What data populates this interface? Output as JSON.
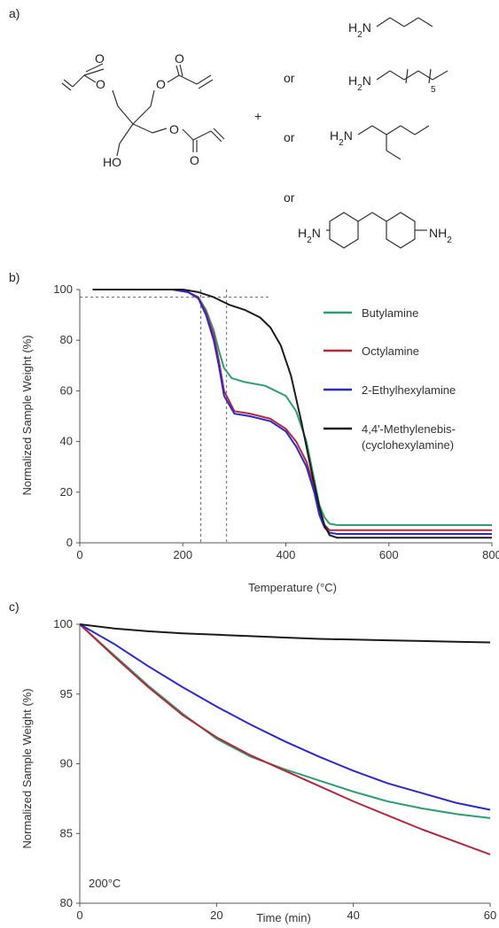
{
  "panels": {
    "a": "a)",
    "b": "b)",
    "c": "c)"
  },
  "scheme": {
    "plus": "+",
    "or_labels": [
      "or",
      "or",
      "or"
    ],
    "triacrylate": {
      "ho": "HO",
      "o_labels": [
        "O",
        "O",
        "O",
        "O",
        "O",
        "O"
      ]
    },
    "amines": {
      "butylamine": "H2N",
      "octylamine": "H2N",
      "octylamine_subscript": "5",
      "ethylhexylamine": "H2N",
      "diamine_left": "H2N",
      "diamine_right": "NH2"
    }
  },
  "colors": {
    "Butylamine": "#2e9e6e",
    "Octylamine": "#b5283a",
    "2-Ethylhexylamine": "#2a2acb",
    "4,4'-Methylenebis-(cyclohexylamine)": "#1b1b1b"
  },
  "chart_data": [
    {
      "type": "line",
      "panel": "b",
      "xlabel": "Temperature (°C)",
      "ylabel": "Normalized Sample Weight (%)",
      "xlim": [
        0,
        800
      ],
      "ylim": [
        0,
        100
      ],
      "xticks": [
        "0",
        "200",
        "400",
        "600",
        "800"
      ],
      "yticks": [
        "0",
        "20",
        "40",
        "60",
        "80",
        "100"
      ],
      "reference_lines": {
        "vertical_x": [
          235,
          285
        ],
        "horizontal_y": 97
      },
      "legend": {
        "placement": "right",
        "entries": [
          "Butylamine",
          "Octylamine",
          "2-Ethylhexylamine",
          "4,4'-Methylenebis-",
          "(cyclohexylamine)"
        ]
      },
      "series": [
        {
          "name": "Butylamine",
          "x": [
            25,
            180,
            210,
            230,
            245,
            260,
            270,
            280,
            295,
            320,
            360,
            400,
            420,
            440,
            455,
            465,
            475,
            485,
            500,
            550,
            800
          ],
          "y": [
            100,
            100,
            99,
            97,
            92,
            84,
            76,
            69,
            65,
            63.5,
            62,
            58,
            52,
            40,
            25,
            15,
            10,
            7.5,
            7,
            7,
            7
          ]
        },
        {
          "name": "Octylamine",
          "x": [
            25,
            180,
            210,
            230,
            245,
            260,
            270,
            280,
            300,
            330,
            370,
            400,
            420,
            440,
            455,
            465,
            475,
            485,
            500,
            550,
            800
          ],
          "y": [
            100,
            100,
            99,
            97,
            91,
            82,
            72,
            60,
            52,
            51,
            49,
            45,
            40,
            32,
            22,
            12,
            7,
            5,
            5,
            5,
            5
          ]
        },
        {
          "name": "2-Ethylhexylamine",
          "x": [
            25,
            180,
            210,
            230,
            245,
            260,
            270,
            280,
            300,
            330,
            370,
            400,
            420,
            440,
            455,
            465,
            475,
            485,
            500,
            550,
            800
          ],
          "y": [
            100,
            100,
            99,
            96.5,
            90,
            80,
            70,
            58,
            51,
            50,
            48,
            44,
            38,
            30,
            20,
            11,
            6,
            4,
            3.5,
            3.5,
            3.5
          ]
        },
        {
          "name": "4,4'-Methylenebis-(cyclohexylamine)",
          "x": [
            25,
            200,
            230,
            260,
            290,
            320,
            350,
            370,
            390,
            410,
            430,
            450,
            465,
            475,
            485,
            500,
            550,
            800
          ],
          "y": [
            100,
            100,
            99,
            97,
            94,
            92,
            89,
            85,
            78,
            66,
            48,
            28,
            14,
            7,
            3,
            2,
            2,
            2
          ]
        }
      ]
    },
    {
      "type": "line",
      "panel": "c",
      "xlabel": "Time (min)",
      "ylabel": "Normalized Sample Weight (%)",
      "xlim": [
        0,
        60
      ],
      "ylim": [
        80,
        100
      ],
      "xticks": [
        "0",
        "20",
        "40",
        "60"
      ],
      "yticks": [
        "80",
        "85",
        "90",
        "95",
        "100"
      ],
      "annotation": "200°C",
      "series": [
        {
          "name": "Butylamine",
          "x": [
            0,
            5,
            10,
            15,
            20,
            25,
            30,
            35,
            40,
            45,
            50,
            55,
            60
          ],
          "y": [
            100,
            97.8,
            95.6,
            93.6,
            91.8,
            90.5,
            89.6,
            88.8,
            88.0,
            87.3,
            86.8,
            86.4,
            86.1
          ]
        },
        {
          "name": "Octylamine",
          "x": [
            0,
            5,
            10,
            15,
            20,
            25,
            30,
            35,
            40,
            45,
            50,
            55,
            60
          ],
          "y": [
            100,
            97.7,
            95.5,
            93.5,
            91.9,
            90.6,
            89.5,
            88.4,
            87.3,
            86.3,
            85.3,
            84.4,
            83.5
          ]
        },
        {
          "name": "2-Ethylhexylamine",
          "x": [
            0,
            5,
            10,
            15,
            20,
            25,
            30,
            35,
            40,
            45,
            50,
            55,
            60
          ],
          "y": [
            100,
            98.6,
            97.0,
            95.5,
            94.1,
            92.8,
            91.6,
            90.5,
            89.5,
            88.6,
            87.9,
            87.2,
            86.7
          ]
        },
        {
          "name": "4,4'-Methylenebis-(cyclohexylamine)",
          "x": [
            0,
            5,
            10,
            15,
            20,
            25,
            30,
            35,
            40,
            45,
            50,
            55,
            60
          ],
          "y": [
            100,
            99.7,
            99.5,
            99.35,
            99.25,
            99.15,
            99.05,
            98.95,
            98.9,
            98.85,
            98.8,
            98.75,
            98.7
          ]
        }
      ]
    }
  ]
}
